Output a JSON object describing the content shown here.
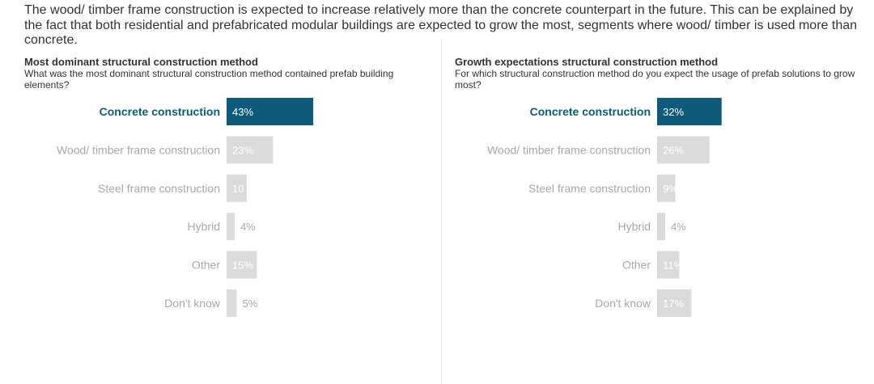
{
  "intro": "The wood/ timber frame construction is expected to increase relatively more than the concrete counterpart in the future. This can be explained by the fact that both residential and prefabricated modular buildings are expected to grow the most, segments where wood/ timber is used more than concrete.",
  "colors": {
    "highlight": "#0e5a7b",
    "muted": "#dbdbdb",
    "highlight_label": "#0e5a7b",
    "muted_label": "#a8a8a8"
  },
  "chart_data": [
    {
      "type": "bar",
      "title": "Most dominant structural construction method",
      "subtitle": "What was the most dominant structural construction method contained prefab building elements?",
      "categories": [
        "Concrete construction",
        "Wood/ timber frame construction",
        "Steel frame construction",
        "Hybrid",
        "Other",
        "Don't know"
      ],
      "values": [
        43,
        23,
        10,
        4,
        15,
        5
      ],
      "labels": [
        "43%",
        "23%",
        "10",
        "4%",
        "15%",
        "5%"
      ],
      "highlight": "Concrete construction",
      "orientation": "horizontal"
    },
    {
      "type": "bar",
      "title": "Growth expectations structural construction method",
      "subtitle": "For which structural construction method do you expect the usage of prefab solutions to grow most?",
      "categories": [
        "Concrete construction",
        "Wood/ timber frame construction",
        "Steel frame construction",
        "Hybrid",
        "Other",
        "Don't know"
      ],
      "values": [
        32,
        26,
        9,
        4,
        11,
        17
      ],
      "labels": [
        "32%",
        "26%",
        "9%",
        "4%",
        "11%",
        "17%"
      ],
      "highlight": "Concrete construction",
      "orientation": "horizontal"
    }
  ]
}
